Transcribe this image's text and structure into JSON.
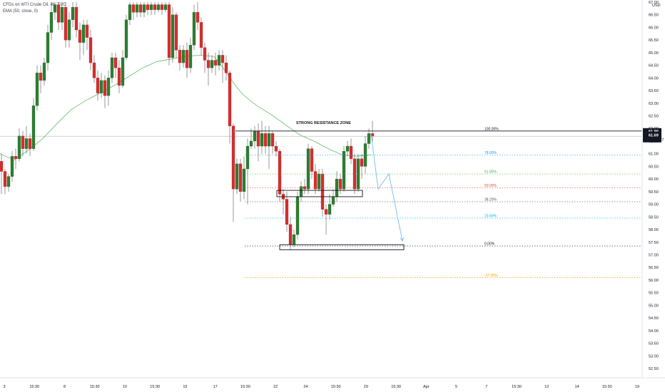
{
  "header": {
    "symbol_line": "CFDs on WTI Crude Oil, 4h, TVC",
    "indicator_line": "EMA (50, close, 0)"
  },
  "price_axis": {
    "currency": "USD",
    "labels": [
      "67.00",
      "66.50",
      "66.00",
      "65.50",
      "65.00",
      "64.50",
      "64.00",
      "63.50",
      "63.00",
      "62.50",
      "62.00",
      "61.50",
      "61.00",
      "60.50",
      "60.00",
      "59.50",
      "59.00",
      "58.50",
      "58.00",
      "57.50",
      "57.00",
      "56.50",
      "56.00",
      "55.50",
      "55.00",
      "54.50",
      "54.00",
      "53.50",
      "53.00",
      "52.50"
    ],
    "last_price_tag": "61.90",
    "current_price_tag": "61.69",
    "countdown_tag": "02:09:27"
  },
  "time_axis": {
    "labels": [
      "3",
      "15:30",
      "8",
      "15:30",
      "10",
      "15:30",
      "15",
      "17",
      "15:30",
      "22",
      "24",
      "15:30",
      "29",
      "15:30",
      "Apr",
      "5",
      "7",
      "15:30",
      "12",
      "14",
      "15:30",
      "19"
    ]
  },
  "annotations": {
    "resistance_label": "STRONG RESISTANCE ZONE"
  },
  "colors": {
    "up": "#26a69a",
    "up_body": "#2e7d32",
    "down": "#d32f2f",
    "ema": "#66bb6a",
    "projection": "#64b5f6"
  },
  "chart_data": {
    "type": "candlestick",
    "y_range": [
      52.5,
      67.0
    ],
    "ema_period": 50,
    "ema": [
      [
        0,
        61.0
      ],
      [
        20,
        60.75
      ],
      [
        40,
        61.15
      ],
      [
        60,
        61.6
      ],
      [
        80,
        62.2
      ],
      [
        100,
        62.75
      ],
      [
        120,
        63.1
      ],
      [
        140,
        63.4
      ],
      [
        160,
        63.7
      ],
      [
        180,
        64.05
      ],
      [
        200,
        64.4
      ],
      [
        220,
        64.65
      ],
      [
        240,
        64.75
      ],
      [
        260,
        64.85
      ],
      [
        280,
        64.9
      ],
      [
        300,
        64.85
      ],
      [
        310,
        64.5
      ],
      [
        320,
        64.1
      ],
      [
        330,
        63.7
      ],
      [
        340,
        63.35
      ],
      [
        360,
        62.9
      ],
      [
        380,
        62.55
      ],
      [
        400,
        62.15
      ],
      [
        420,
        61.75
      ],
      [
        440,
        61.5
      ],
      [
        460,
        61.2
      ],
      [
        480,
        60.95
      ],
      [
        500,
        60.9
      ],
      [
        520,
        60.95
      ]
    ],
    "candles": [
      [
        0,
        60.7,
        60.3,
        61.0,
        59.4
      ],
      [
        5,
        60.3,
        59.7,
        60.4,
        59.4
      ],
      [
        10,
        59.7,
        60.1,
        60.2,
        59.5
      ],
      [
        15,
        60.1,
        60.9,
        61.1,
        59.9
      ],
      [
        20,
        60.9,
        60.8,
        61.2,
        60.4
      ],
      [
        25,
        60.8,
        61.7,
        62.0,
        60.7
      ],
      [
        30,
        61.7,
        61.2,
        61.9,
        60.9
      ],
      [
        35,
        61.2,
        61.6,
        62.1,
        61.0
      ],
      [
        40,
        61.6,
        61.2,
        61.8,
        60.9
      ],
      [
        45,
        61.2,
        62.9,
        63.2,
        61.1
      ],
      [
        50,
        62.9,
        64.2,
        64.5,
        62.7
      ],
      [
        55,
        64.2,
        63.9,
        64.5,
        63.4
      ],
      [
        60,
        63.9,
        64.6,
        64.8,
        63.7
      ],
      [
        65,
        64.6,
        65.8,
        66.1,
        64.3
      ],
      [
        70,
        65.8,
        66.6,
        67.0,
        65.5
      ],
      [
        75,
        66.6,
        66.9,
        67.0,
        66.3
      ],
      [
        80,
        66.9,
        66.2,
        67.0,
        65.9
      ],
      [
        85,
        66.2,
        66.8,
        67.0,
        65.9
      ],
      [
        90,
        66.8,
        65.5,
        67.0,
        65.2
      ],
      [
        95,
        65.5,
        66.3,
        66.6,
        65.2
      ],
      [
        100,
        66.3,
        66.8,
        67.0,
        66.0
      ],
      [
        105,
        66.8,
        65.9,
        67.0,
        65.6
      ],
      [
        110,
        65.9,
        65.4,
        66.2,
        64.7
      ],
      [
        115,
        65.4,
        66.1,
        66.3,
        64.9
      ],
      [
        120,
        66.1,
        65.6,
        66.3,
        65.1
      ],
      [
        125,
        65.6,
        64.6,
        65.9,
        64.3
      ],
      [
        130,
        64.6,
        64.0,
        64.9,
        63.8
      ],
      [
        135,
        64.0,
        63.4,
        64.3,
        63.1
      ],
      [
        140,
        63.4,
        63.9,
        64.2,
        63.2
      ],
      [
        145,
        63.9,
        63.3,
        64.1,
        62.8
      ],
      [
        150,
        63.3,
        64.0,
        64.3,
        62.9
      ],
      [
        155,
        64.0,
        64.8,
        65.0,
        63.8
      ],
      [
        160,
        64.8,
        64.4,
        65.0,
        64.0
      ],
      [
        165,
        64.4,
        63.7,
        64.7,
        63.4
      ],
      [
        170,
        63.7,
        64.8,
        65.1,
        63.6
      ],
      [
        175,
        64.8,
        66.3,
        66.5,
        64.7
      ],
      [
        180,
        66.3,
        66.9,
        67.0,
        66.1
      ],
      [
        185,
        66.9,
        66.6,
        67.0,
        66.3
      ],
      [
        190,
        66.6,
        66.9,
        67.0,
        66.4
      ],
      [
        195,
        66.9,
        66.6,
        67.0,
        66.4
      ],
      [
        200,
        66.6,
        66.9,
        67.0,
        66.4
      ],
      [
        205,
        66.9,
        66.7,
        67.0,
        66.5
      ],
      [
        210,
        66.7,
        66.9,
        67.0,
        66.5
      ],
      [
        215,
        66.9,
        66.7,
        67.0,
        66.5
      ],
      [
        220,
        66.7,
        66.9,
        67.0,
        66.6
      ],
      [
        225,
        66.9,
        66.7,
        67.0,
        66.5
      ],
      [
        230,
        66.7,
        66.9,
        67.0,
        66.6
      ],
      [
        235,
        66.9,
        64.8,
        67.0,
        64.5
      ],
      [
        240,
        64.8,
        66.5,
        66.8,
        64.6
      ],
      [
        245,
        66.5,
        65.1,
        66.6,
        64.8
      ],
      [
        250,
        65.1,
        64.6,
        65.3,
        64.3
      ],
      [
        255,
        64.6,
        65.1,
        65.3,
        64.4
      ],
      [
        260,
        65.1,
        64.4,
        65.4,
        64.0
      ],
      [
        265,
        64.4,
        65.3,
        65.6,
        64.2
      ],
      [
        270,
        65.3,
        66.6,
        66.9,
        65.1
      ],
      [
        275,
        66.6,
        66.2,
        67.0,
        65.9
      ],
      [
        280,
        66.2,
        65.2,
        66.4,
        64.9
      ],
      [
        285,
        65.2,
        64.7,
        65.4,
        64.2
      ],
      [
        290,
        64.7,
        64.4,
        65.0,
        63.7
      ],
      [
        295,
        64.4,
        64.7,
        64.9,
        64.2
      ],
      [
        300,
        64.7,
        64.5,
        65.0,
        64.1
      ],
      [
        305,
        64.5,
        64.9,
        65.1,
        64.3
      ],
      [
        310,
        64.9,
        64.6,
        65.1,
        63.8
      ],
      [
        315,
        64.6,
        64.2,
        64.9,
        63.9
      ],
      [
        320,
        64.2,
        62.1,
        64.3,
        61.4
      ],
      [
        325,
        62.1,
        59.6,
        62.2,
        58.3
      ],
      [
        330,
        59.6,
        60.6,
        60.8,
        59.4
      ],
      [
        335,
        60.6,
        59.5,
        60.8,
        59.1
      ],
      [
        340,
        59.5,
        60.4,
        60.9,
        59.2
      ],
      [
        345,
        60.4,
        61.3,
        61.6,
        59.0
      ],
      [
        350,
        61.3,
        61.5,
        62.0,
        61.2
      ],
      [
        355,
        61.5,
        61.9,
        62.1,
        61.2
      ],
      [
        360,
        61.9,
        61.3,
        62.2,
        60.7
      ],
      [
        365,
        61.3,
        61.8,
        62.3,
        61.0
      ],
      [
        370,
        61.8,
        61.3,
        62.1,
        61.0
      ],
      [
        375,
        61.3,
        61.8,
        62.1,
        60.4
      ],
      [
        380,
        61.8,
        61.3,
        61.9,
        61.0
      ],
      [
        385,
        61.3,
        61.1,
        61.5,
        60.9
      ],
      [
        390,
        61.1,
        59.4,
        61.2,
        59.1
      ],
      [
        395,
        59.4,
        59.2,
        59.6,
        58.6
      ],
      [
        400,
        59.2,
        58.2,
        59.5,
        57.9
      ],
      [
        405,
        58.2,
        57.4,
        58.5,
        57.2
      ],
      [
        410,
        57.4,
        57.8,
        58.0,
        57.3
      ],
      [
        415,
        57.8,
        59.3,
        59.5,
        57.6
      ],
      [
        420,
        59.3,
        59.7,
        59.9,
        59.1
      ],
      [
        425,
        59.7,
        59.6,
        60.0,
        59.4
      ],
      [
        430,
        59.6,
        61.2,
        61.4,
        59.4
      ],
      [
        435,
        61.2,
        60.3,
        61.3,
        60.0
      ],
      [
        440,
        60.3,
        59.6,
        60.6,
        59.4
      ],
      [
        445,
        59.6,
        60.2,
        60.4,
        59.5
      ],
      [
        450,
        60.2,
        58.8,
        60.4,
        58.5
      ],
      [
        455,
        58.8,
        58.6,
        59.0,
        57.8
      ],
      [
        460,
        58.6,
        59.0,
        59.4,
        58.4
      ],
      [
        465,
        59.0,
        59.3,
        59.6,
        58.9
      ],
      [
        470,
        59.3,
        60.0,
        60.3,
        59.1
      ],
      [
        475,
        60.0,
        59.6,
        60.2,
        59.4
      ],
      [
        480,
        59.6,
        61.1,
        61.3,
        59.5
      ],
      [
        485,
        61.1,
        61.3,
        61.5,
        60.9
      ],
      [
        490,
        61.3,
        60.8,
        61.6,
        60.6
      ],
      [
        495,
        60.8,
        59.6,
        61.0,
        59.4
      ],
      [
        500,
        59.6,
        60.8,
        61.0,
        59.5
      ],
      [
        505,
        60.8,
        60.5,
        61.0,
        60.0
      ],
      [
        510,
        60.5,
        61.4,
        61.7,
        60.2
      ],
      [
        515,
        61.4,
        61.8,
        62.0,
        61.2
      ],
      [
        520,
        61.8,
        61.7,
        62.3,
        61.5
      ]
    ],
    "fib_levels": [
      {
        "label": "100.00%",
        "price": 61.9
      },
      {
        "label": "78.60%",
        "price": 60.95
      },
      {
        "label": "61.80%",
        "price": 60.2
      },
      {
        "label": "50.00%",
        "price": 59.65
      },
      {
        "label": "38.20%",
        "price": 59.1
      },
      {
        "label": "23.60%",
        "price": 58.45
      },
      {
        "label": "0.00%",
        "price": 57.35
      },
      {
        "label": "-27.00%",
        "price": 56.1
      }
    ],
    "zones": [
      {
        "from": 388,
        "to": 508,
        "low": 59.3,
        "high": 59.55
      },
      {
        "from": 392,
        "to": 566,
        "low": 57.2,
        "high": 57.4
      }
    ],
    "projection": [
      [
        520,
        61.8
      ],
      [
        530,
        59.6
      ],
      [
        545,
        60.2
      ],
      [
        564,
        57.55
      ]
    ]
  }
}
